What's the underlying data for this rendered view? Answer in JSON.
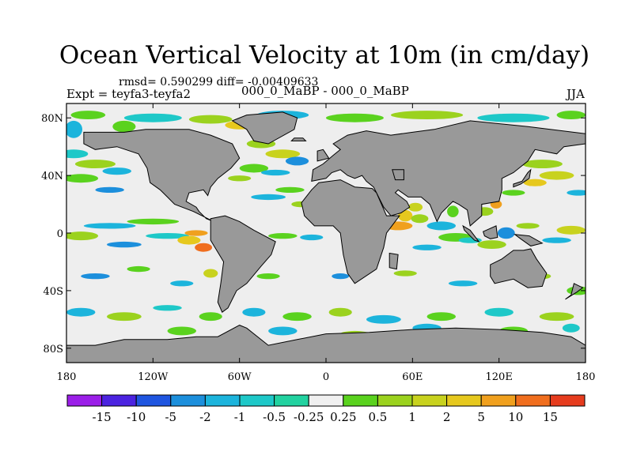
{
  "title": "Ocean Vertical Velocity at 10m (in cm/day)",
  "stats_text": "rmsd= 0.590299 diff= -0.00409633",
  "left_subtitle": "Expt = teyfa3-teyfa2",
  "center_subtitle": "000_0_MaBP - 000_0_MaBP",
  "right_subtitle": "JJA",
  "map": {
    "projection": "cylindrical-equidistant",
    "lon_range": [
      -180,
      180
    ],
    "lat_range": [
      -90,
      90
    ],
    "land_color": "#999999",
    "ocean_background": "#eeeeee",
    "lon_ticks": [
      {
        "value": -180,
        "label": "180"
      },
      {
        "value": -120,
        "label": "120W"
      },
      {
        "value": -60,
        "label": "60W"
      },
      {
        "value": 0,
        "label": "0"
      },
      {
        "value": 60,
        "label": "60E"
      },
      {
        "value": 120,
        "label": "120E"
      },
      {
        "value": 180,
        "label": "180"
      }
    ],
    "lat_ticks": [
      {
        "value": 80,
        "label": "80N"
      },
      {
        "value": 40,
        "label": "40N"
      },
      {
        "value": 0,
        "label": "0"
      },
      {
        "value": -40,
        "label": "40S"
      },
      {
        "value": -80,
        "label": "80S"
      }
    ]
  },
  "colorbar": {
    "colors": [
      "#9b1fe8",
      "#4b23e0",
      "#1f55e0",
      "#1c8fdc",
      "#1cb4dc",
      "#1ec8c8",
      "#22d2a0",
      "#f0f0f0",
      "#5ad21e",
      "#9bd21e",
      "#c8d21e",
      "#e6c81e",
      "#f0a01e",
      "#f06e1e",
      "#e63c1e"
    ],
    "labels": [
      "-15",
      "-10",
      "-5",
      "-2",
      "-1",
      "-0.5",
      "-0.25",
      "0.25",
      "0.5",
      "1",
      "2",
      "5",
      "10",
      "15"
    ]
  }
}
